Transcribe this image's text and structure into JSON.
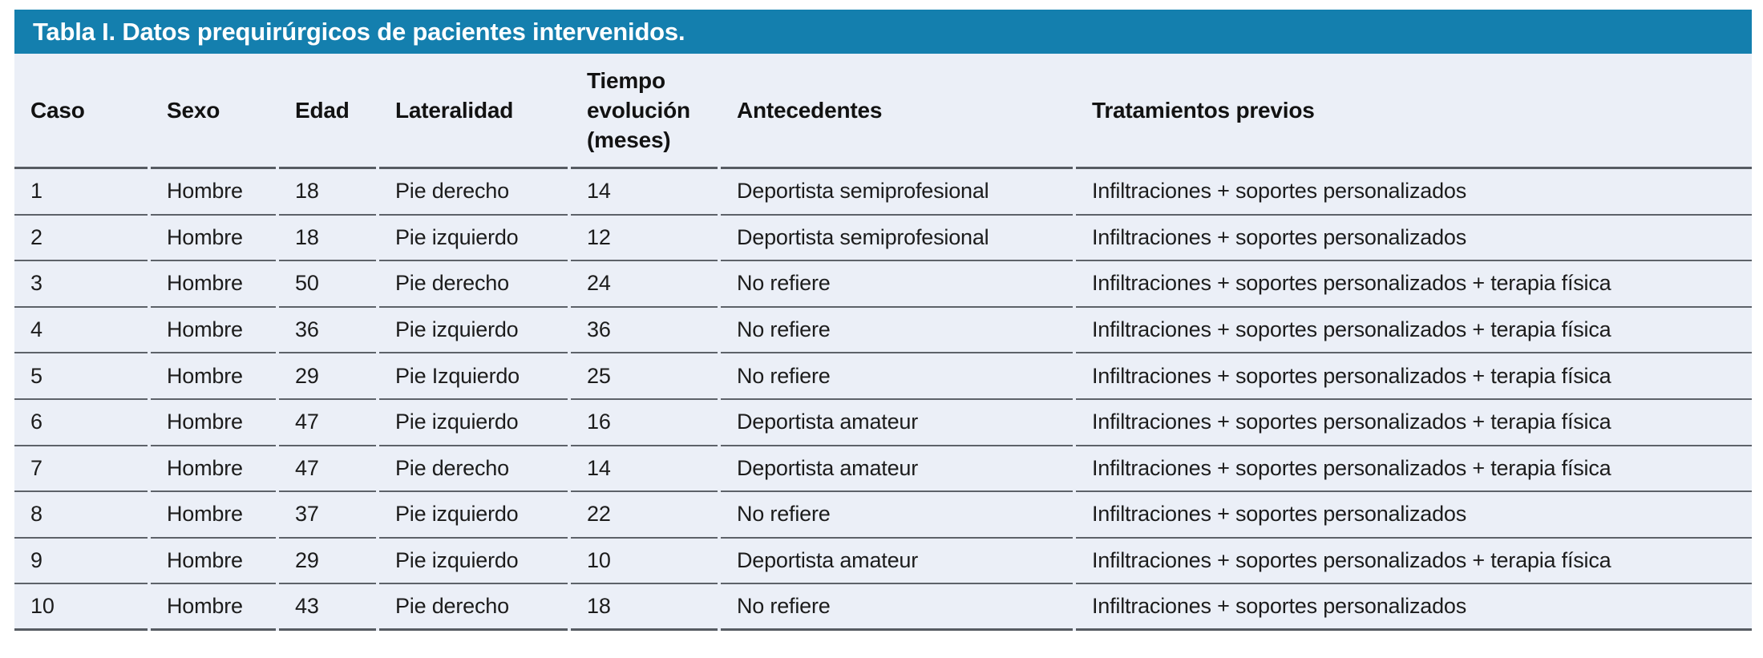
{
  "table": {
    "title": "Tabla I. Datos prequirúrgicos de pacientes intervenidos.",
    "columns": [
      "Caso",
      "Sexo",
      "Edad",
      "Lateralidad",
      "Tiempo evolución (meses)",
      "Antecedentes",
      "Tratamientos previos"
    ],
    "rows": [
      [
        "1",
        "Hombre",
        "18",
        "Pie derecho",
        "14",
        "Deportista semiprofesional",
        "Infiltraciones + soportes personalizados"
      ],
      [
        "2",
        "Hombre",
        "18",
        "Pie izquierdo",
        "12",
        "Deportista semiprofesional",
        "Infiltraciones + soportes personalizados"
      ],
      [
        "3",
        "Hombre",
        "50",
        "Pie derecho",
        "24",
        "No refiere",
        "Infiltraciones + soportes personalizados + terapia física"
      ],
      [
        "4",
        "Hombre",
        "36",
        "Pie izquierdo",
        "36",
        "No refiere",
        "Infiltraciones + soportes personalizados + terapia física"
      ],
      [
        "5",
        "Hombre",
        "29",
        "Pie Izquierdo",
        "25",
        "No refiere",
        "Infiltraciones + soportes personalizados + terapia física"
      ],
      [
        "6",
        "Hombre",
        "47",
        "Pie izquierdo",
        "16",
        "Deportista amateur",
        "Infiltraciones + soportes personalizados + terapia física"
      ],
      [
        "7",
        "Hombre",
        "47",
        "Pie derecho",
        "14",
        "Deportista amateur",
        "Infiltraciones + soportes personalizados + terapia física"
      ],
      [
        "8",
        "Hombre",
        "37",
        "Pie izquierdo",
        "22",
        "No refiere",
        "Infiltraciones + soportes personalizados"
      ],
      [
        "9",
        "Hombre",
        "29",
        "Pie izquierdo",
        "10",
        "Deportista amateur",
        "Infiltraciones + soportes personalizados + terapia física"
      ],
      [
        "10",
        "Hombre",
        "43",
        "Pie derecho",
        "18",
        "No refiere",
        "Infiltraciones + soportes personalizados"
      ]
    ]
  },
  "colors": {
    "accent": "#147fae",
    "table_background": "#ebeff7",
    "rule_dark": "#565b62",
    "rule_row": "#5d6269",
    "title_text": "#ffffff",
    "body_text": "#1c1c1c"
  }
}
